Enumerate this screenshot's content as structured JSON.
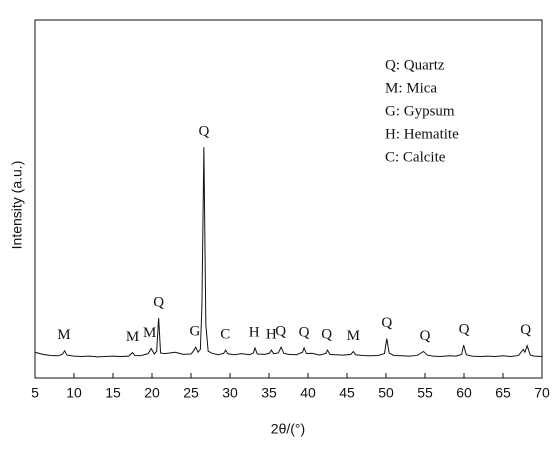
{
  "chart_data": {
    "type": "line",
    "x_label": "2θ/(°)",
    "y_label": "Intensity (a.u.)",
    "legend_text": [
      "Q: Quartz",
      "M: Mica",
      "G: Gypsum",
      "H: Hematite",
      "C: Calcite"
    ],
    "xlim": [
      5,
      70
    ],
    "xticks": [
      5,
      10,
      15,
      20,
      25,
      30,
      35,
      40,
      45,
      50,
      55,
      60,
      65,
      70
    ],
    "ylim": [
      0,
      100
    ],
    "series": [
      {
        "color": "#111111",
        "x": [
          5,
          6,
          7,
          8,
          8.5,
          8.8,
          9.1,
          10,
          11,
          12,
          13,
          14,
          15,
          16,
          17,
          17.5,
          17.8,
          18.5,
          19.5,
          19.9,
          20.3,
          20.6,
          20.85,
          21.1,
          21.6,
          22,
          23,
          24,
          25,
          25.3,
          25.6,
          25.9,
          26.2,
          26.4,
          26.65,
          26.9,
          27.2,
          27.7,
          28.5,
          29.2,
          29.45,
          29.7,
          30.5,
          31.5,
          32.5,
          33,
          33.2,
          33.5,
          34.5,
          35.1,
          35.3,
          35.6,
          36.2,
          36.55,
          36.9,
          37.5,
          38.5,
          39.3,
          39.5,
          39.8,
          40.5,
          41.5,
          42.3,
          42.5,
          42.8,
          43.5,
          44.5,
          45.5,
          45.8,
          46.1,
          47,
          48,
          49,
          49.8,
          50.1,
          50.4,
          51,
          52,
          53,
          54,
          54.8,
          55,
          55.3,
          56,
          57,
          58,
          59,
          59.7,
          59.95,
          60.3,
          61,
          62,
          63,
          64,
          65,
          66,
          67,
          67.6,
          67.8,
          68.1,
          68.5,
          69,
          70
        ],
        "values": [
          7.2,
          6.6,
          6.3,
          6.2,
          6.6,
          7.6,
          6.4,
          6.1,
          6.0,
          6.1,
          5.9,
          6.0,
          6.1,
          6.0,
          6.1,
          7.1,
          6.3,
          6.2,
          6.8,
          8.2,
          6.7,
          7.5,
          16.8,
          7.0,
          6.8,
          6.9,
          7.2,
          6.6,
          6.7,
          7.5,
          8.6,
          7.2,
          8.0,
          20,
          64.5,
          15,
          7.5,
          6.9,
          6.5,
          6.9,
          7.8,
          6.8,
          6.5,
          6.8,
          6.5,
          7.0,
          8.4,
          6.7,
          6.6,
          7.0,
          7.8,
          6.8,
          7.0,
          8.6,
          6.9,
          6.6,
          6.5,
          7.2,
          8.4,
          6.8,
          6.9,
          6.4,
          6.9,
          7.8,
          6.6,
          6.5,
          6.4,
          6.6,
          7.4,
          6.5,
          6.3,
          6.2,
          6.3,
          6.8,
          11,
          7.0,
          6.3,
          6.2,
          6.1,
          6.3,
          7.4,
          7.0,
          6.4,
          6.1,
          6.0,
          6.2,
          6.1,
          6.6,
          9.2,
          6.5,
          6.1,
          6.0,
          6.1,
          6.0,
          6.2,
          6.0,
          6.3,
          8.0,
          7.2,
          9.0,
          6.4,
          6.1,
          6.0
        ]
      }
    ],
    "annotations": [
      {
        "text": "M",
        "x": 8.7
      },
      {
        "text": "M",
        "x": 17.5
      },
      {
        "text": "M",
        "x": 19.7
      },
      {
        "text": "Q",
        "x": 20.85
      },
      {
        "text": "G",
        "x": 25.5
      },
      {
        "text": "Q",
        "x": 26.65
      },
      {
        "text": "C",
        "x": 29.4
      },
      {
        "text": "H",
        "x": 33.1
      },
      {
        "text": "H",
        "x": 35.3
      },
      {
        "text": "Q",
        "x": 36.5
      },
      {
        "text": "Q",
        "x": 39.5
      },
      {
        "text": "Q",
        "x": 42.4
      },
      {
        "text": "M",
        "x": 45.8
      },
      {
        "text": "Q",
        "x": 50.1
      },
      {
        "text": "Q",
        "x": 55
      },
      {
        "text": "Q",
        "x": 60
      },
      {
        "text": "Q",
        "x": 67.9
      }
    ]
  }
}
